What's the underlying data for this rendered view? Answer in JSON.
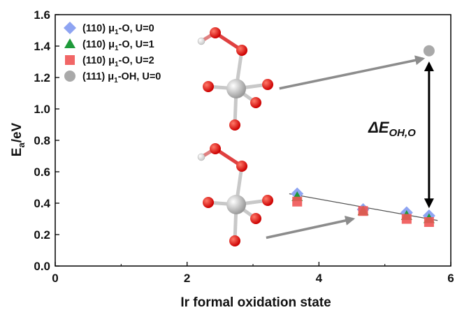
{
  "chart_data": {
    "type": "scatter",
    "xlabel": "Ir formal oxidation state",
    "ylabel": "E",
    "ylabel_sub": "a",
    "ylabel_unit": "/eV",
    "xlim": [
      0,
      6
    ],
    "ylim": [
      0.0,
      1.6
    ],
    "x_ticks": [
      "0",
      "2",
      "4",
      "6"
    ],
    "y_ticks": [
      "0.0",
      "0.2",
      "0.4",
      "0.6",
      "0.8",
      "1.0",
      "1.2",
      "1.4",
      "1.6"
    ],
    "grid": false,
    "legend_position": "top-left",
    "series": [
      {
        "name": "(110) μ1-O, U=0",
        "label_pre": "(110) μ",
        "label_sub": "1",
        "label_post": "-O, U=0",
        "marker": "diamond",
        "color": "#8ea4f2",
        "x": [
          3.67,
          4.67,
          5.33,
          5.67
        ],
        "y": [
          0.46,
          0.36,
          0.34,
          0.32
        ]
      },
      {
        "name": "(110) μ1-O, U=1",
        "label_pre": "(110) μ",
        "label_sub": "1",
        "label_post": "-O, U=1",
        "marker": "triangle",
        "color": "#1e9a3a",
        "x": [
          3.67,
          4.67,
          5.33,
          5.67
        ],
        "y": [
          0.44,
          0.35,
          0.32,
          0.3
        ]
      },
      {
        "name": "(110) μ1-O, U=2",
        "label_pre": "(110) μ",
        "label_sub": "1",
        "label_post": "-O, U=2",
        "marker": "square",
        "color": "#f05555",
        "x": [
          3.67,
          4.67,
          5.33,
          5.67
        ],
        "y": [
          0.41,
          0.35,
          0.3,
          0.28
        ]
      },
      {
        "name": "(111) μ1-OH, U=0",
        "label_pre": "(111) μ",
        "label_sub": "1",
        "label_post": "-OH, U=0",
        "marker": "circle",
        "color": "#a9a9a9",
        "x": [
          5.67
        ],
        "y": [
          1.37
        ]
      }
    ],
    "trendline": {
      "x": [
        3.55,
        5.8
      ],
      "y": [
        0.46,
        0.29
      ]
    },
    "annotation": {
      "main": "ΔE",
      "sub": "OH,O",
      "x_from": 5.67,
      "y_from": 0.38,
      "y_to": 1.29
    },
    "structure_arrows": [
      {
        "x1": 3.4,
        "y1": 1.13,
        "x2": 5.58,
        "y2": 1.32
      },
      {
        "x1": 3.2,
        "y1": 0.18,
        "x2": 4.52,
        "y2": 0.3
      }
    ]
  }
}
